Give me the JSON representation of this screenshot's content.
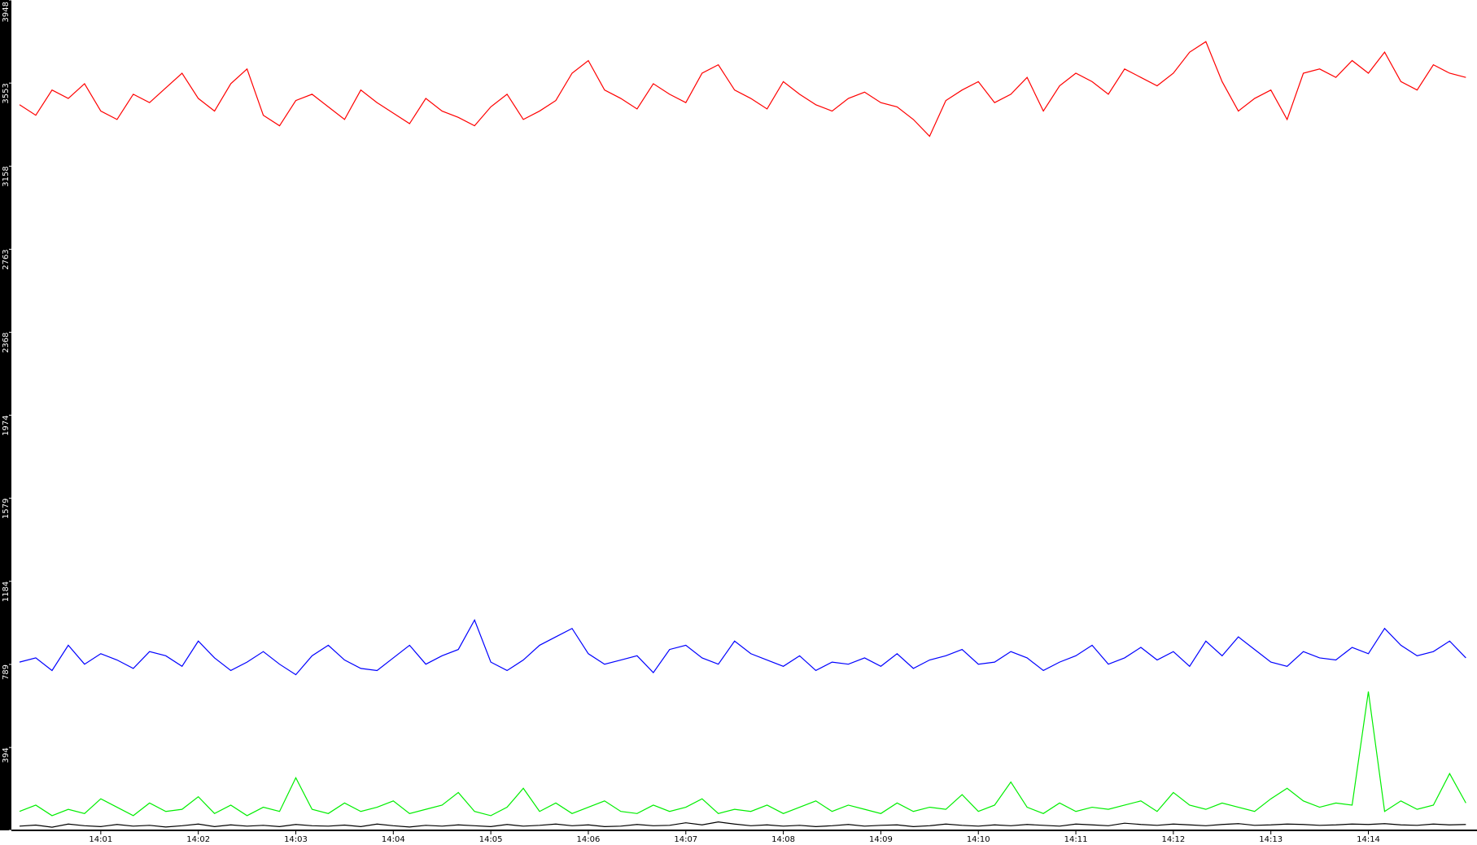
{
  "chart_data": {
    "type": "line",
    "categories": [
      null,
      null,
      null,
      null,
      null,
      "14:01",
      null,
      null,
      null,
      null,
      null,
      "14:02",
      null,
      null,
      null,
      null,
      null,
      "14:03",
      null,
      null,
      null,
      null,
      null,
      "14:04",
      null,
      null,
      null,
      null,
      null,
      "14:05",
      null,
      null,
      null,
      null,
      null,
      "14:06",
      null,
      null,
      null,
      null,
      null,
      "14:07",
      null,
      null,
      null,
      null,
      null,
      "14:08",
      null,
      null,
      null,
      null,
      null,
      "14:09",
      null,
      null,
      null,
      null,
      null,
      "14:10",
      null,
      null,
      null,
      null,
      null,
      "14:11",
      null,
      null,
      null,
      null,
      null,
      "14:12",
      null,
      null,
      null,
      null,
      null,
      "14:13",
      null,
      null,
      null,
      null,
      null,
      "14:14",
      null,
      null,
      null,
      null,
      null,
      null
    ],
    "series": [
      {
        "color": "#ff0000",
        "values": [
          3450,
          3400,
          3520,
          3480,
          3550,
          3420,
          3380,
          3500,
          3460,
          3530,
          3600,
          3480,
          3420,
          3550,
          3620,
          3400,
          3350,
          3470,
          3500,
          3440,
          3380,
          3520,
          3460,
          3410,
          3360,
          3480,
          3420,
          3390,
          3350,
          3440,
          3500,
          3380,
          3420,
          3470,
          3600,
          3660,
          3520,
          3480,
          3430,
          3550,
          3500,
          3460,
          3600,
          3640,
          3520,
          3480,
          3430,
          3560,
          3500,
          3450,
          3420,
          3480,
          3510,
          3460,
          3440,
          3380,
          3300,
          3470,
          3520,
          3560,
          3460,
          3500,
          3580,
          3420,
          3540,
          3600,
          3560,
          3500,
          3620,
          3580,
          3540,
          3600,
          3700,
          3750,
          3560,
          3420,
          3480,
          3520,
          3380,
          3600,
          3620,
          3580,
          3660,
          3600,
          3700,
          3560,
          3520,
          3640,
          3600,
          3580
        ]
      },
      {
        "color": "#0000ff",
        "values": [
          800,
          820,
          760,
          880,
          790,
          840,
          810,
          770,
          850,
          830,
          780,
          900,
          820,
          760,
          800,
          850,
          790,
          740,
          830,
          880,
          810,
          770,
          760,
          820,
          880,
          790,
          830,
          860,
          1000,
          800,
          760,
          810,
          880,
          920,
          960,
          840,
          790,
          810,
          830,
          750,
          860,
          880,
          820,
          790,
          900,
          840,
          810,
          780,
          830,
          760,
          800,
          790,
          820,
          780,
          840,
          770,
          810,
          830,
          860,
          790,
          800,
          850,
          820,
          760,
          800,
          830,
          880,
          790,
          820,
          870,
          810,
          850,
          780,
          900,
          830,
          920,
          860,
          800,
          780,
          850,
          820,
          810,
          870,
          840,
          960,
          880,
          830,
          850,
          900,
          820
        ]
      },
      {
        "color": "#00ee00",
        "values": [
          90,
          120,
          70,
          100,
          80,
          150,
          110,
          70,
          130,
          90,
          100,
          160,
          80,
          120,
          70,
          110,
          90,
          250,
          100,
          80,
          130,
          90,
          110,
          140,
          80,
          100,
          120,
          180,
          90,
          70,
          110,
          200,
          90,
          130,
          80,
          110,
          140,
          90,
          80,
          120,
          90,
          110,
          150,
          80,
          100,
          90,
          120,
          80,
          110,
          140,
          90,
          120,
          100,
          80,
          130,
          90,
          110,
          100,
          170,
          90,
          120,
          230,
          110,
          80,
          130,
          90,
          110,
          100,
          120,
          140,
          90,
          180,
          120,
          100,
          130,
          110,
          90,
          150,
          200,
          140,
          110,
          130,
          120,
          660,
          90,
          140,
          100,
          120,
          270,
          130
        ]
      },
      {
        "color": "#000000",
        "values": [
          20,
          25,
          15,
          30,
          22,
          18,
          28,
          20,
          24,
          16,
          22,
          30,
          18,
          26,
          20,
          24,
          18,
          28,
          22,
          20,
          25,
          18,
          30,
          22,
          16,
          24,
          20,
          26,
          22,
          18,
          28,
          20,
          24,
          30,
          22,
          26,
          18,
          20,
          28,
          22,
          24,
          36,
          26,
          40,
          30,
          22,
          26,
          20,
          24,
          18,
          22,
          28,
          20,
          24,
          26,
          18,
          22,
          30,
          24,
          20,
          26,
          22,
          28,
          24,
          20,
          30,
          26,
          22,
          34,
          28,
          24,
          30,
          26,
          22,
          28,
          32,
          24,
          26,
          30,
          28,
          24,
          26,
          30,
          28,
          32,
          26,
          24,
          30,
          26,
          28
        ]
      }
    ],
    "ylim": [
      0,
      3948
    ],
    "yticks": [
      0,
      394,
      789,
      1184,
      1579,
      1974,
      2368,
      2763,
      3158,
      3553,
      3948
    ]
  }
}
